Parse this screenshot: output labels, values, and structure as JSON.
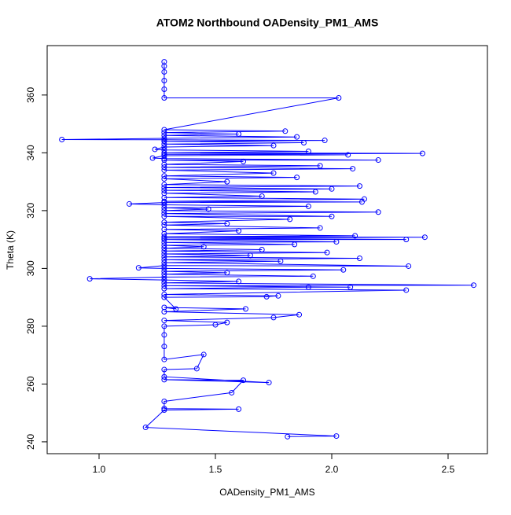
{
  "chart_data": {
    "type": "line",
    "title": "ATOM2 Northbound OADensity_PM1_AMS",
    "x_label": "OADensity_PM1_AMS",
    "y_label": "Theta (K)",
    "color": "#0000ff",
    "markers": true,
    "x": [
      1.81,
      2.02,
      1.2,
      1.28,
      1.6,
      1.28,
      1.28,
      1.57,
      1.62,
      1.28,
      1.73,
      1.28,
      1.28,
      1.42,
      1.45,
      1.28,
      1.28,
      1.28,
      1.28,
      1.5,
      1.55,
      1.28,
      1.75,
      1.86,
      1.28,
      1.63,
      1.28,
      1.33,
      1.28,
      1.72,
      1.77,
      1.28,
      2.32,
      1.28,
      1.9,
      2.08,
      1.28,
      2.61,
      1.28,
      1.6,
      1.28,
      0.96,
      1.28,
      1.92,
      1.28,
      1.55,
      1.28,
      2.05,
      1.28,
      1.17,
      1.28,
      2.33,
      1.28,
      1.78,
      1.28,
      2.12,
      1.28,
      1.65,
      1.28,
      1.98,
      1.28,
      1.7,
      1.28,
      1.45,
      1.28,
      1.84,
      1.28,
      2.02,
      1.28,
      2.32,
      1.28,
      2.4,
      1.28,
      2.1,
      1.28,
      1.6,
      1.28,
      1.95,
      1.28,
      1.55,
      1.28,
      1.82,
      1.28,
      2.0,
      1.28,
      2.2,
      1.28,
      1.47,
      1.28,
      1.9,
      1.28,
      1.13,
      1.28,
      2.13,
      1.28,
      2.14,
      1.28,
      1.7,
      1.28,
      1.93,
      1.28,
      2.0,
      1.28,
      2.12,
      1.28,
      1.55,
      1.28,
      1.85,
      1.28,
      1.75,
      1.28,
      2.09,
      1.28,
      1.95,
      1.28,
      1.62,
      1.28,
      2.2,
      1.28,
      1.23,
      1.28,
      2.07,
      1.28,
      2.39,
      1.28,
      1.9,
      1.28,
      1.24,
      1.28,
      1.75,
      1.28,
      1.88,
      1.28,
      1.97,
      1.28,
      0.84,
      1.28,
      1.85,
      1.28,
      1.6,
      1.28,
      1.8,
      1.28,
      2.03,
      1.28,
      1.28,
      1.28,
      1.28,
      1.28,
      1.28
    ],
    "values": [
      241.8,
      242,
      245,
      251,
      251.3,
      251.5,
      254,
      257,
      261.3,
      261.5,
      260.5,
      262.5,
      265,
      265.3,
      270.2,
      268.5,
      273,
      277,
      280,
      280.5,
      281.3,
      282,
      283,
      284,
      285,
      286,
      286.5,
      286,
      290,
      290.2,
      290.5,
      291,
      292.5,
      293,
      293.5,
      293.5,
      294,
      294.2,
      295,
      295.5,
      296,
      296.4,
      297,
      297.3,
      298,
      298.5,
      299,
      299.5,
      300,
      300.2,
      301,
      300.8,
      302,
      302.5,
      303,
      303.5,
      304,
      304.5,
      305,
      305.5,
      306,
      306.5,
      307,
      307.5,
      308,
      308.3,
      309,
      309.2,
      310,
      310,
      310.5,
      310.8,
      311,
      311.3,
      312,
      313,
      313.5,
      314,
      315,
      315.5,
      316,
      317,
      318,
      318,
      319,
      319.5,
      320,
      320.5,
      321,
      321.5,
      322,
      322.3,
      322.8,
      323,
      323.2,
      324,
      324.5,
      325,
      326,
      326.5,
      327,
      327.5,
      328,
      328.5,
      329,
      330,
      331,
      331.5,
      332,
      333,
      334,
      334.5,
      335,
      335.5,
      336,
      337,
      337.5,
      337.5,
      338,
      338.2,
      339,
      339.3,
      339.5,
      339.8,
      340,
      340.5,
      341,
      341.2,
      342,
      342.5,
      343,
      343.5,
      344,
      344.3,
      344.5,
      344.6,
      345,
      345.5,
      346,
      346.5,
      347,
      347.5,
      348,
      359,
      359,
      362,
      365,
      368,
      370,
      371.5
    ],
    "xlim": [
      0.777,
      2.669
    ],
    "ylim": [
      235.9,
      377.1
    ],
    "xticks": [
      {
        "value": 1,
        "label": "1.0"
      },
      {
        "value": 1.5,
        "label": "1.5"
      },
      {
        "value": 2,
        "label": "2.0"
      },
      {
        "value": 2.5,
        "label": "2.5"
      }
    ],
    "yticks": [
      240,
      260,
      280,
      300,
      320,
      340,
      360
    ]
  }
}
